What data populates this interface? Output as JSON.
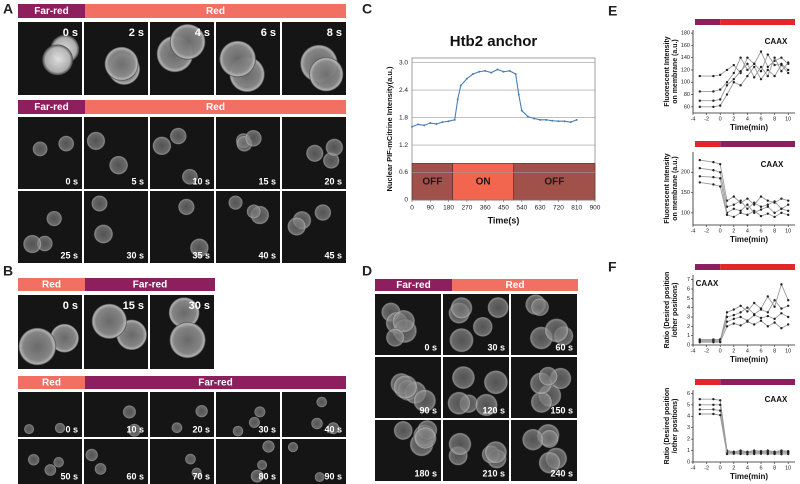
{
  "panel_labels": [
    "A",
    "B",
    "C",
    "D",
    "E",
    "F"
  ],
  "micrographs": [
    {
      "condition_bar": [
        {
          "label": "Far-red",
          "color": "#8e1f5e"
        },
        {
          "label": "Red",
          "color": "#f26f63"
        }
      ],
      "times": [
        "0 s",
        "2 s",
        "4 s",
        "6 s",
        "8 s"
      ]
    },
    {
      "condition_bar": [
        {
          "label": "Far-red",
          "color": "#8e1f5e"
        },
        {
          "label": "Red",
          "color": "#f26f63"
        }
      ],
      "times": [
        "0 s",
        "5 s",
        "10 s",
        "15 s",
        "20 s",
        "25 s",
        "30 s",
        "35 s",
        "40 s",
        "45 s"
      ]
    },
    {
      "condition_bar": [
        {
          "label": "Red",
          "color": "#f26f63"
        },
        {
          "label": "Far-red",
          "color": "#8e1f5e"
        }
      ],
      "times": [
        "0 s",
        "15 s",
        "30 s"
      ]
    },
    {
      "condition_bar": [
        {
          "label": "Red",
          "color": "#f26f63"
        },
        {
          "label": "Far-red",
          "color": "#8e1f5e"
        }
      ],
      "times": [
        "0 s",
        "10 s",
        "20 s",
        "30 s",
        "40 s",
        "50 s",
        "60 s",
        "70 s",
        "80 s",
        "90 s"
      ]
    },
    {
      "condition_bar": [
        {
          "label": "Far-red",
          "color": "#8e1f5e"
        },
        {
          "label": "Red",
          "color": "#f26f63"
        }
      ],
      "times": [
        "0 s",
        "30 s",
        "60 s",
        "90 s",
        "120 s",
        "150 s",
        "180 s",
        "210 s",
        "240 s"
      ]
    }
  ],
  "chart_data": [
    {
      "type": "line",
      "title": "Htb2 anchor",
      "x_label": "Time(s)",
      "y_label": "Nuclear PIF-mCitrine Intensity(a.u.)",
      "x": [
        0,
        30,
        60,
        90,
        120,
        150,
        180,
        210,
        225,
        240,
        270,
        300,
        330,
        360,
        390,
        420,
        450,
        480,
        510,
        525,
        540,
        570,
        600,
        630,
        660,
        690,
        720,
        750,
        780,
        810
      ],
      "series": [
        {
          "color": "#4a7fb5",
          "values": [
            1.6,
            1.65,
            1.63,
            1.68,
            1.66,
            1.7,
            1.72,
            1.75,
            2.2,
            2.5,
            2.65,
            2.75,
            2.8,
            2.82,
            2.78,
            2.85,
            2.8,
            2.82,
            2.75,
            2.3,
            1.95,
            1.82,
            1.78,
            1.75,
            1.75,
            1.73,
            1.72,
            1.72,
            1.7,
            1.75
          ]
        }
      ],
      "xlim": [
        0,
        900
      ],
      "xticks": [
        0,
        90,
        180,
        270,
        360,
        450,
        540,
        630,
        720,
        810,
        900
      ],
      "ylim": [
        0,
        3.1
      ],
      "yticks": [
        0,
        0.6,
        1.2,
        1.8,
        2.4,
        {
          "value": 3,
          "label": "3.0"
        }
      ],
      "grid": true,
      "phases": [
        {
          "label": "OFF",
          "start": 0,
          "end": 200,
          "top": 0.8,
          "color": "#a0524a"
        },
        {
          "label": "ON",
          "start": 200,
          "end": 500,
          "top": 0.8,
          "color": "#f2664f"
        },
        {
          "label": "OFF",
          "start": 500,
          "end": 900,
          "top": 0.8,
          "color": "#a0524a"
        }
      ]
    },
    {
      "type": "line",
      "annotation": "CAAX",
      "x_label": "Time(min)",
      "y_label": [
        "Fluorescent Intensity",
        "on membrane (a.u.)"
      ],
      "condition_bar": [
        "#8e1f5e",
        "#e3262b"
      ],
      "marker_color": "#222222",
      "x": [
        -3,
        -1,
        0,
        1,
        2,
        3,
        4,
        5,
        6,
        7,
        8,
        9,
        10
      ],
      "series": [
        {
          "color": "#9a9a9a",
          "values": [
            110,
            110,
            112,
            120,
            128,
            115,
            140,
            130,
            150,
            125,
            135,
            140,
            130
          ]
        },
        {
          "color": "#9a9a9a",
          "values": [
            85,
            85,
            88,
            100,
            115,
            140,
            120,
            130,
            118,
            145,
            128,
            130,
            120
          ]
        },
        {
          "color": "#9a9a9a",
          "values": [
            70,
            70,
            72,
            95,
            105,
            118,
            130,
            108,
            125,
            110,
            140,
            118,
            132
          ]
        },
        {
          "color": "#9a9a9a",
          "values": [
            60,
            60,
            62,
            80,
            100,
            95,
            110,
            125,
            105,
            120,
            110,
            128,
            115
          ]
        }
      ],
      "xlim": [
        -4,
        11
      ],
      "xticks": [
        -4,
        -2,
        0,
        2,
        4,
        6,
        8,
        10
      ],
      "ylim": [
        50,
        185
      ],
      "yticks": [
        60,
        80,
        100,
        120,
        140,
        160,
        180
      ]
    },
    {
      "type": "line",
      "annotation": "CAAX",
      "x_label": "Time(min)",
      "y_label": [
        "Fluorescent Intensity",
        "on membrane (a.u.)"
      ],
      "condition_bar": [
        "#e3262b",
        "#8e1f5e"
      ],
      "marker_color": "#222222",
      "x": [
        -3,
        -1,
        0,
        1,
        2,
        3,
        4,
        5,
        6,
        7,
        8,
        9,
        10
      ],
      "series": [
        {
          "color": "#9a9a9a",
          "values": [
            230,
            225,
            220,
            130,
            140,
            125,
            135,
            120,
            140,
            130,
            125,
            135,
            130
          ]
        },
        {
          "color": "#9a9a9a",
          "values": [
            210,
            205,
            200,
            115,
            120,
            130,
            110,
            125,
            115,
            120,
            128,
            110,
            120
          ]
        },
        {
          "color": "#9a9a9a",
          "values": [
            190,
            188,
            185,
            100,
            110,
            105,
            120,
            100,
            108,
            115,
            100,
            110,
            105
          ]
        },
        {
          "color": "#9a9a9a",
          "values": [
            175,
            170,
            165,
            95,
            90,
            100,
            95,
            105,
            92,
            98,
            90,
            100,
            95
          ]
        }
      ],
      "xlim": [
        -4,
        11
      ],
      "xticks": [
        -4,
        -2,
        0,
        2,
        4,
        6,
        8,
        10
      ],
      "ylim": [
        70,
        250
      ],
      "yticks": [
        100,
        150,
        200
      ]
    },
    {
      "type": "line",
      "annotation": "CAAX",
      "x_label": "Time(min)",
      "y_label": [
        "Ratio (Desired position",
        "/other positions)"
      ],
      "condition_bar": [
        "#8e1f5e",
        "#e3262b"
      ],
      "marker_color": "#222222",
      "x": [
        -3,
        -1,
        0,
        1,
        2,
        3,
        4,
        5,
        6,
        7,
        8,
        9,
        10
      ],
      "series": [
        {
          "color": "#9a9a9a",
          "values": [
            0.5,
            0.5,
            0.5,
            3.5,
            3.8,
            4.2,
            3.6,
            4.5,
            3.9,
            5.2,
            4.1,
            6.5,
            4.8
          ]
        },
        {
          "color": "#9a9a9a",
          "values": [
            0.4,
            0.4,
            0.4,
            3.0,
            3.2,
            3.5,
            4.0,
            3.3,
            3.8,
            3.5,
            4.8,
            3.9,
            4.2
          ]
        },
        {
          "color": "#9a9a9a",
          "values": [
            0.6,
            0.6,
            0.6,
            2.5,
            2.8,
            3.0,
            2.6,
            3.2,
            2.9,
            3.1,
            2.8,
            3.4,
            3.0
          ]
        },
        {
          "color": "#9a9a9a",
          "values": [
            0.3,
            0.3,
            0.3,
            2.0,
            2.3,
            2.1,
            2.5,
            2.2,
            2.6,
            2.0,
            2.4,
            1.8,
            2.2
          ]
        }
      ],
      "xlim": [
        -4,
        11
      ],
      "xticks": [
        -4,
        -2,
        0,
        2,
        4,
        6,
        8,
        10
      ],
      "ylim": [
        0,
        7.5
      ],
      "yticks": [
        0,
        1,
        2,
        3,
        4,
        5,
        6,
        7
      ]
    },
    {
      "type": "line",
      "annotation": "CAAX",
      "x_label": "Time(min)",
      "y_label": [
        "Ratio (Desired position",
        "/other positions)"
      ],
      "condition_bar": [
        "#e3262b",
        "#8e1f5e"
      ],
      "marker_color": "#222222",
      "x": [
        -3,
        -1,
        0,
        1,
        2,
        3,
        4,
        5,
        6,
        7,
        8,
        9,
        10
      ],
      "series": [
        {
          "color": "#9a9a9a",
          "values": [
            5.5,
            5.5,
            5.4,
            1.0,
            0.9,
            1.0,
            0.9,
            1.0,
            0.95,
            1.0,
            0.9,
            1.0,
            0.95
          ]
        },
        {
          "color": "#9a9a9a",
          "values": [
            5.0,
            5.0,
            5.0,
            0.9,
            0.85,
            0.9,
            0.85,
            0.9,
            0.88,
            0.9,
            0.85,
            0.9,
            0.88
          ]
        },
        {
          "color": "#9a9a9a",
          "values": [
            4.6,
            4.6,
            4.5,
            0.8,
            0.8,
            0.78,
            0.8,
            0.82,
            0.8,
            0.8,
            0.78,
            0.82,
            0.8
          ]
        },
        {
          "color": "#9a9a9a",
          "values": [
            4.2,
            4.2,
            4.1,
            0.7,
            0.72,
            0.7,
            0.68,
            0.7,
            0.72,
            0.7,
            0.7,
            0.68,
            0.7
          ]
        }
      ],
      "xlim": [
        -4,
        11
      ],
      "xticks": [
        -4,
        -2,
        0,
        2,
        4,
        6,
        8,
        10
      ],
      "ylim": [
        0,
        6.3
      ],
      "yticks": [
        0,
        1,
        2,
        3,
        4,
        5,
        6
      ]
    }
  ]
}
